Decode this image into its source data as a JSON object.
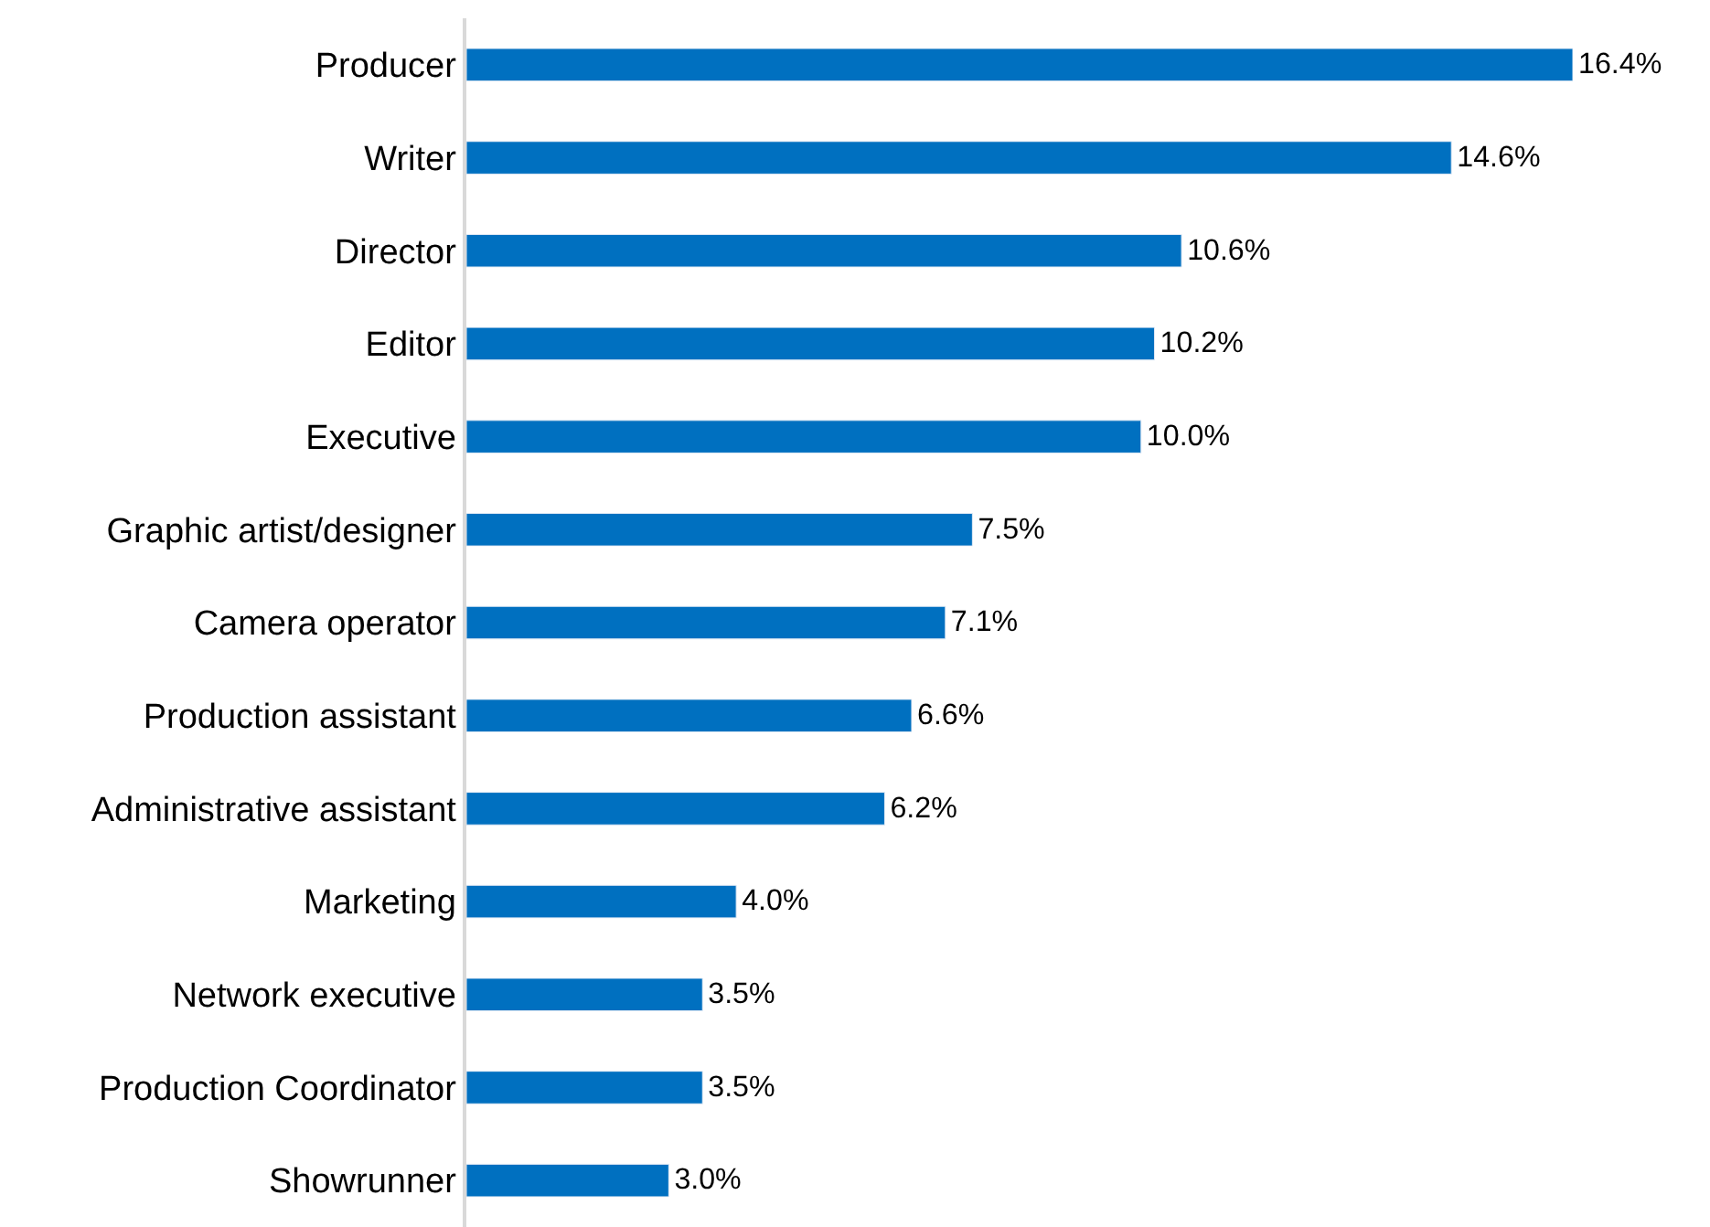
{
  "chart_data": {
    "type": "bar",
    "orientation": "horizontal",
    "categories": [
      "Producer",
      "Writer",
      "Director",
      "Editor",
      "Executive",
      "Graphic artist/designer",
      "Camera operator",
      "Production assistant",
      "Administrative assistant",
      "Marketing",
      "Network executive",
      "Production Coordinator",
      "Showrunner"
    ],
    "values": [
      16.4,
      14.6,
      10.6,
      10.2,
      10.0,
      7.5,
      7.1,
      6.6,
      6.2,
      4.0,
      3.5,
      3.5,
      3.0
    ],
    "value_labels": [
      "16.4%",
      "14.6%",
      "10.6%",
      "10.2%",
      "10.0%",
      "7.5%",
      "7.1%",
      "6.6%",
      "6.2%",
      "4.0%",
      "3.5%",
      "3.5%",
      "3.0%"
    ],
    "color": "#0070c0",
    "xlim": [
      0,
      16.4
    ]
  }
}
